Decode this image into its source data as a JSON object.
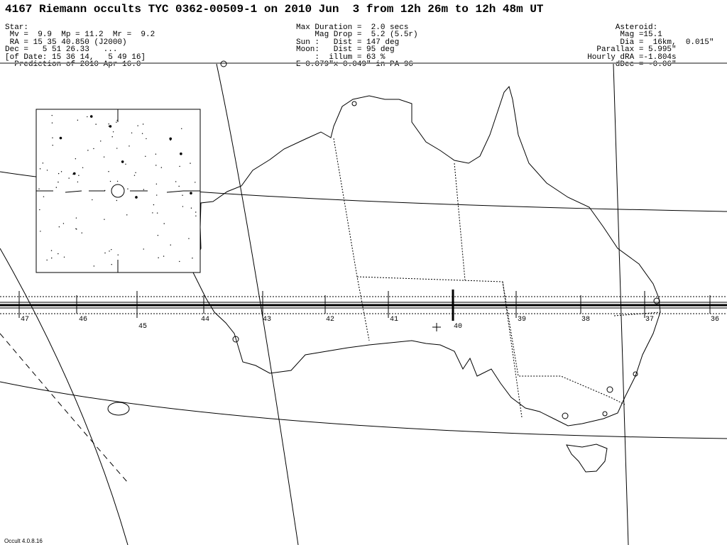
{
  "title": "4167 Riemann occults TYC 0362-00509-1 on 2010 Jun  3 from 12h 26m to 12h 48m UT",
  "star": [
    "Star:",
    " Mv =  9.9  Mp = 11.2  Mr =  9.2",
    " RA = 15 35 40.850 (J2000)",
    "Dec =   5 51 26.33   ...",
    "[of Date: 15 36 14,   5 49 16]",
    "  Prediction of 2010 Apr 16.0"
  ],
  "event": [
    "Max Duration =  2.0 secs",
    "    Mag Drop =  5.2 (5.5r)",
    "Sun :   Dist = 147 deg",
    "Moon:   Dist = 95 deg",
    "    :  illum = 63 %",
    "E 0.079\"x 0.049\" in PA 96"
  ],
  "asteroid": [
    "        Asteroid:",
    "         Mag =15.1",
    "         Dia =  16km,  0.015\"",
    "    Parallax = 5.995\"",
    "  Hourly dRA =-1.804s",
    "        dDec = -0.06\""
  ],
  "time_ticks": [
    "47",
    "46",
    "45",
    "44",
    "43",
    "42",
    "41",
    "40",
    "39",
    "38",
    "37",
    "36"
  ],
  "footer": "Occult 4.0.8.16"
}
